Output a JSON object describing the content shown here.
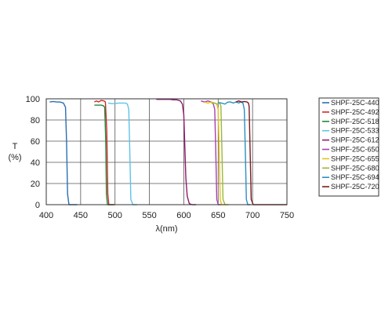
{
  "chart_data": {
    "type": "line",
    "title": "",
    "xlabel": "λ(nm)",
    "ylabel_line1": "T",
    "ylabel_line2": "(%)",
    "xlim": [
      400,
      750
    ],
    "ylim": [
      0,
      100
    ],
    "xticks": [
      400,
      450,
      500,
      550,
      600,
      650,
      700,
      750
    ],
    "yticks": [
      0,
      20,
      40,
      60,
      80,
      100
    ],
    "grid": true,
    "legend_position": "right",
    "series": [
      {
        "name": "SHPF-25C-440",
        "color": "#2a6fb4",
        "x": [
          405,
          410,
          415,
          420,
          425,
          428,
          429.5,
          431,
          433,
          436,
          440,
          445
        ],
        "y": [
          97,
          97.5,
          97,
          97,
          96,
          92,
          60,
          10,
          0,
          0,
          0,
          0
        ]
      },
      {
        "name": "SHPF-25C-492",
        "color": "#d22828",
        "x": [
          470,
          473,
          476,
          480,
          484,
          486,
          488,
          489.5,
          491,
          494,
          500
        ],
        "y": [
          97,
          98,
          97,
          98.5,
          98,
          97,
          70,
          10,
          0,
          0,
          0
        ]
      },
      {
        "name": "SHPF-25C-518",
        "color": "#1f8a3a",
        "x": [
          470,
          475,
          480,
          483,
          485,
          486.5,
          487.5,
          489,
          492,
          498
        ],
        "y": [
          94,
          94,
          94,
          93.5,
          92,
          60,
          10,
          0,
          0,
          0
        ]
      },
      {
        "name": "SHPF-25C-533",
        "color": "#5fc3e6",
        "x": [
          490,
          495,
          500,
          505,
          510,
          515,
          518,
          520,
          521.5,
          523,
          526,
          532
        ],
        "y": [
          96,
          95.5,
          95.5,
          96,
          96,
          96,
          95,
          90,
          50,
          5,
          0,
          0
        ]
      },
      {
        "name": "SHPF-25C-612",
        "color": "#8e1a6c",
        "x": [
          560,
          565,
          570,
          575,
          580,
          585,
          590,
          595,
          598,
          600,
          601.5,
          603,
          605,
          608,
          612,
          618
        ],
        "y": [
          99.5,
          99.5,
          99.5,
          99.5,
          99.5,
          99,
          99,
          98,
          95,
          85,
          55,
          25,
          8,
          1,
          0,
          0
        ]
      },
      {
        "name": "SHPF-25C-650",
        "color": "#a83fb0",
        "x": [
          625,
          630,
          635,
          640,
          643,
          645,
          646.5,
          648,
          650,
          654
        ],
        "y": [
          98,
          97,
          98,
          97,
          95,
          90,
          50,
          5,
          0,
          0
        ]
      },
      {
        "name": "SHPF-25C-655",
        "color": "#e6c21a",
        "x": [
          630,
          635,
          640,
          645,
          648,
          650,
          651.5,
          653,
          655,
          660
        ],
        "y": [
          97,
          96,
          97,
          96,
          95,
          90,
          50,
          5,
          0,
          0
        ]
      },
      {
        "name": "SHPF-25C-680",
        "color": "#9ab83a",
        "x": [
          640,
          645,
          648,
          651,
          653,
          654,
          655.5,
          657,
          660,
          665
        ],
        "y": [
          96,
          96,
          95,
          96,
          95,
          93,
          50,
          5,
          0,
          0
        ]
      },
      {
        "name": "SHPF-25C-694",
        "color": "#2a8fc4",
        "x": [
          650,
          655,
          660,
          663,
          665,
          668,
          672,
          676,
          680,
          683,
          686,
          688,
          689.5,
          691,
          693,
          697
        ],
        "y": [
          96.5,
          96,
          95,
          96.5,
          97,
          97,
          96,
          97,
          96,
          97,
          96,
          90,
          50,
          5,
          0,
          0
        ]
      },
      {
        "name": "SHPF-25C-720",
        "color": "#7a1a22",
        "x": [
          676,
          680,
          684,
          688,
          692,
          694,
          695,
          696.5,
          698,
          701,
          706,
          720,
          750
        ],
        "y": [
          97,
          98,
          97,
          97.5,
          97,
          96,
          93,
          50,
          5,
          0,
          0,
          0,
          0
        ]
      }
    ]
  }
}
